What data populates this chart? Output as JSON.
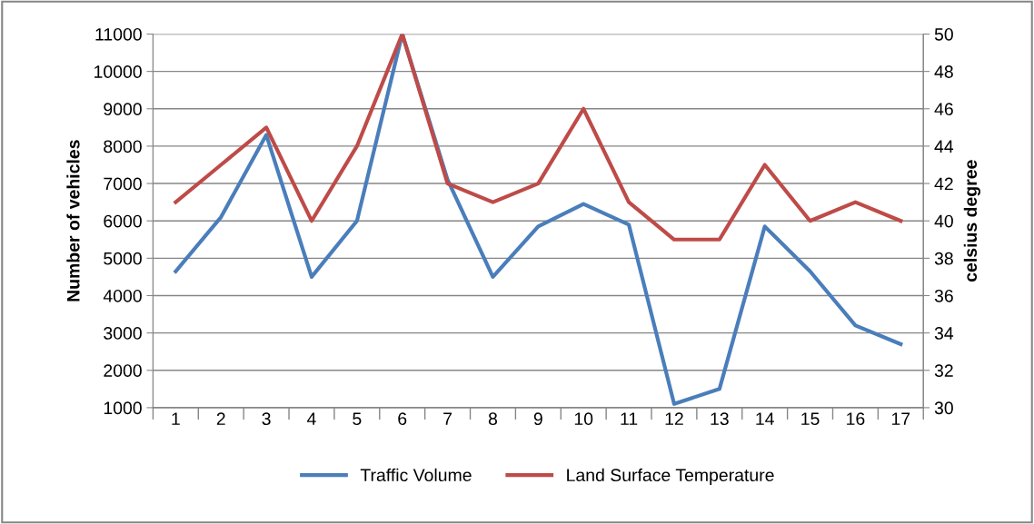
{
  "chart_data": {
    "type": "line",
    "ylabel": "Number of vehicles",
    "y2label": "celsius degree",
    "categories": [
      "1",
      "2",
      "3",
      "4",
      "5",
      "6",
      "7",
      "8",
      "9",
      "10",
      "11",
      "12",
      "13",
      "14",
      "15",
      "16",
      "17"
    ],
    "series": [
      {
        "name": "Traffic Volume",
        "color": "#4a7ebb",
        "values": [
          4650,
          6100,
          8300,
          4500,
          6000,
          11000,
          7100,
          4500,
          5850,
          6450,
          5900,
          1100,
          1500,
          5850,
          4650,
          3200,
          2700
        ]
      },
      {
        "name": "Land Surface Temperature",
        "color": "#be4b48",
        "axis": "y2",
        "values": [
          41,
          43,
          45,
          40,
          44,
          50,
          42,
          41,
          42,
          46,
          41,
          39,
          39,
          43,
          40,
          41,
          40
        ]
      }
    ],
    "ylim": [
      1000,
      11000
    ],
    "yticks": [
      1000,
      2000,
      3000,
      4000,
      5000,
      6000,
      7000,
      8000,
      9000,
      10000,
      11000
    ],
    "y2lim": [
      30,
      50
    ],
    "y2ticks": [
      30,
      32,
      34,
      36,
      38,
      40,
      42,
      44,
      46,
      48,
      50
    ],
    "grid": "y",
    "legend": "bottom",
    "marker": "none",
    "line_style": "solid"
  }
}
